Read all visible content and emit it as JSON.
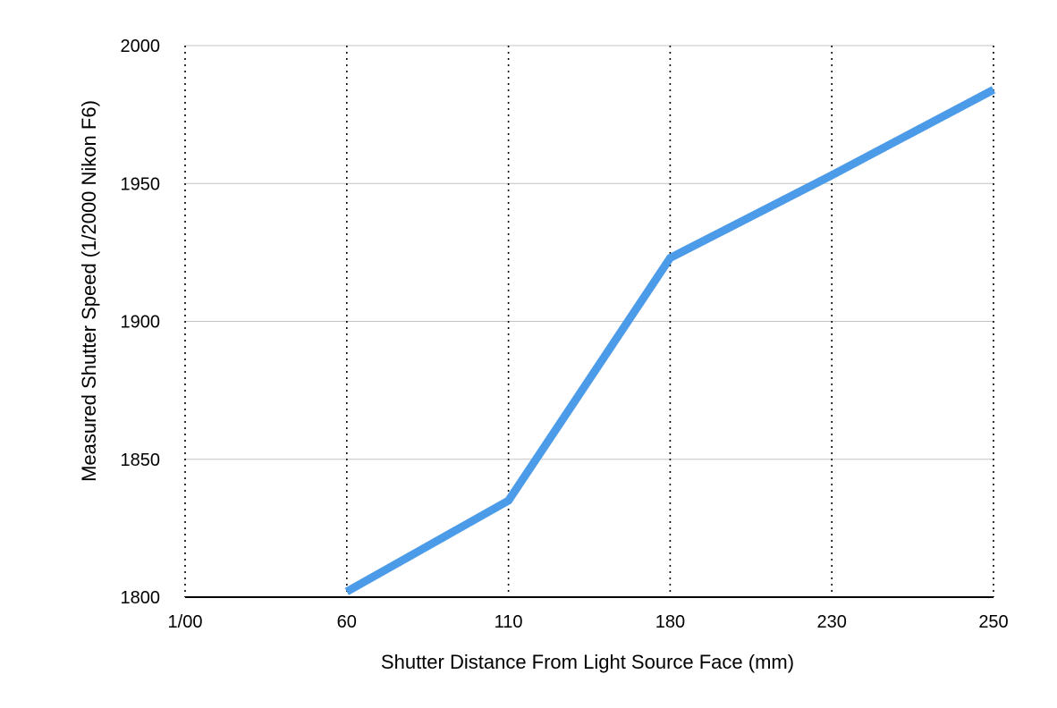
{
  "chart_data": {
    "type": "line",
    "title": "",
    "xlabel": "Shutter Distance From Light Source Face (mm)",
    "ylabel": "Measured Shutter Speed (1/2000 Nikon F6)",
    "categories": [
      "1/00",
      "60",
      "110",
      "180",
      "230",
      "250"
    ],
    "series": [
      {
        "values": [
          null,
          1802,
          1835,
          1923,
          1953,
          1984
        ],
        "color": "#4c9be8"
      }
    ],
    "ylim": [
      1800,
      2000
    ],
    "yticks": [
      1800,
      1850,
      1900,
      1950,
      2000
    ],
    "grid": {
      "horizontal": "solid",
      "vertical": "dotted"
    },
    "legend": "none"
  }
}
